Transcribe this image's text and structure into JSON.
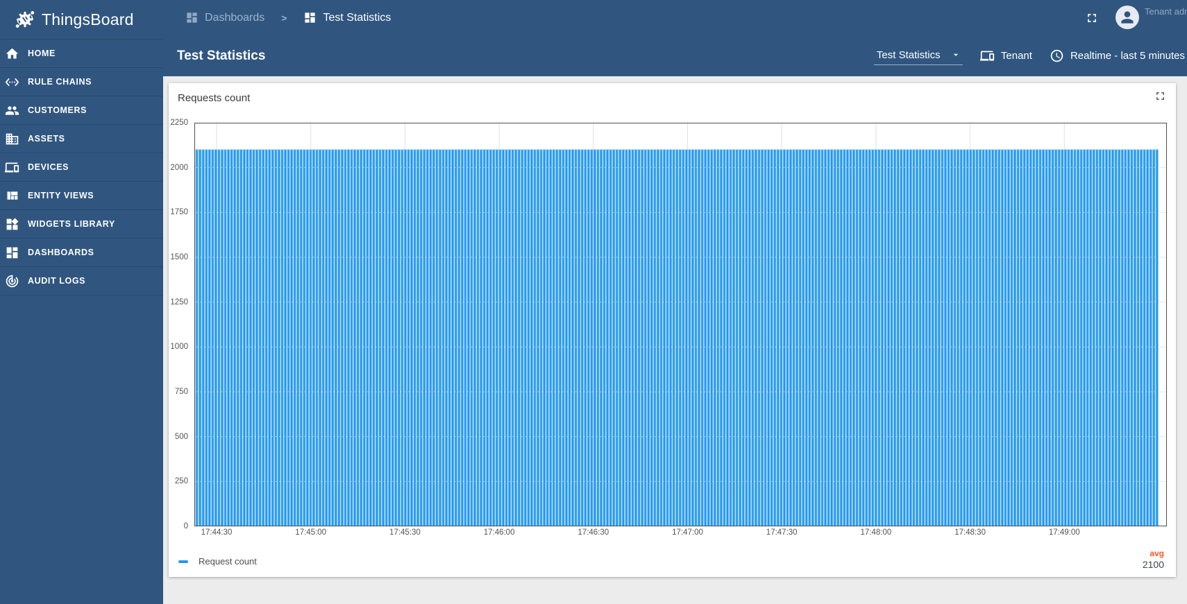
{
  "app": {
    "title": "ThingsBoard"
  },
  "sidebar": {
    "items": [
      {
        "label": "HOME",
        "icon": "home-icon"
      },
      {
        "label": "RULE CHAINS",
        "icon": "rule-chains-icon"
      },
      {
        "label": "CUSTOMERS",
        "icon": "customers-icon"
      },
      {
        "label": "ASSETS",
        "icon": "assets-icon"
      },
      {
        "label": "DEVICES",
        "icon": "devices-icon"
      },
      {
        "label": "ENTITY VIEWS",
        "icon": "entity-views-icon"
      },
      {
        "label": "WIDGETS LIBRARY",
        "icon": "widgets-library-icon"
      },
      {
        "label": "DASHBOARDS",
        "icon": "dashboards-icon"
      },
      {
        "label": "AUDIT LOGS",
        "icon": "audit-logs-icon"
      }
    ]
  },
  "header": {
    "breadcrumb": {
      "parent": "Dashboards",
      "separator": ">",
      "current": "Test Statistics"
    },
    "user_label": "Tenant adm"
  },
  "toolbar": {
    "title": "Test Statistics",
    "state_select_value": "Test Statistics",
    "entity_label": "Tenant",
    "time_label": "Realtime - last 5 minutes"
  },
  "widget": {
    "title": "Requests count",
    "legend": {
      "series": "Request count",
      "avg_label": "avg",
      "avg_value": "2100"
    }
  },
  "chart_data": {
    "type": "bar",
    "title": "Requests count",
    "x_ticks": [
      "17:44:30",
      "17:45:00",
      "17:45:30",
      "17:46:00",
      "17:46:30",
      "17:47:00",
      "17:47:30",
      "17:48:00",
      "17:48:30",
      "17:49:00"
    ],
    "x_window": {
      "start": "17:44:23",
      "end": "17:49:33",
      "bar_interval_seconds": 1
    },
    "y_ticks": [
      0,
      250,
      500,
      750,
      1000,
      1250,
      1500,
      1750,
      2000,
      2250
    ],
    "ylim": [
      0,
      2250
    ],
    "series": [
      {
        "name": "Request count",
        "color": "#2196f3",
        "bar_count": 305,
        "constant_value": 2100,
        "avg": 2100
      }
    ],
    "grid": true,
    "legend_position": "bottom"
  },
  "colors": {
    "primary": "#305680",
    "bar": "#2196f3",
    "bar_edge": "#7cc3f3",
    "avg_accent": "#ff5722",
    "content_bg": "#ececec",
    "axis_text": "#545454",
    "plot_border": "#4d4d4d"
  }
}
